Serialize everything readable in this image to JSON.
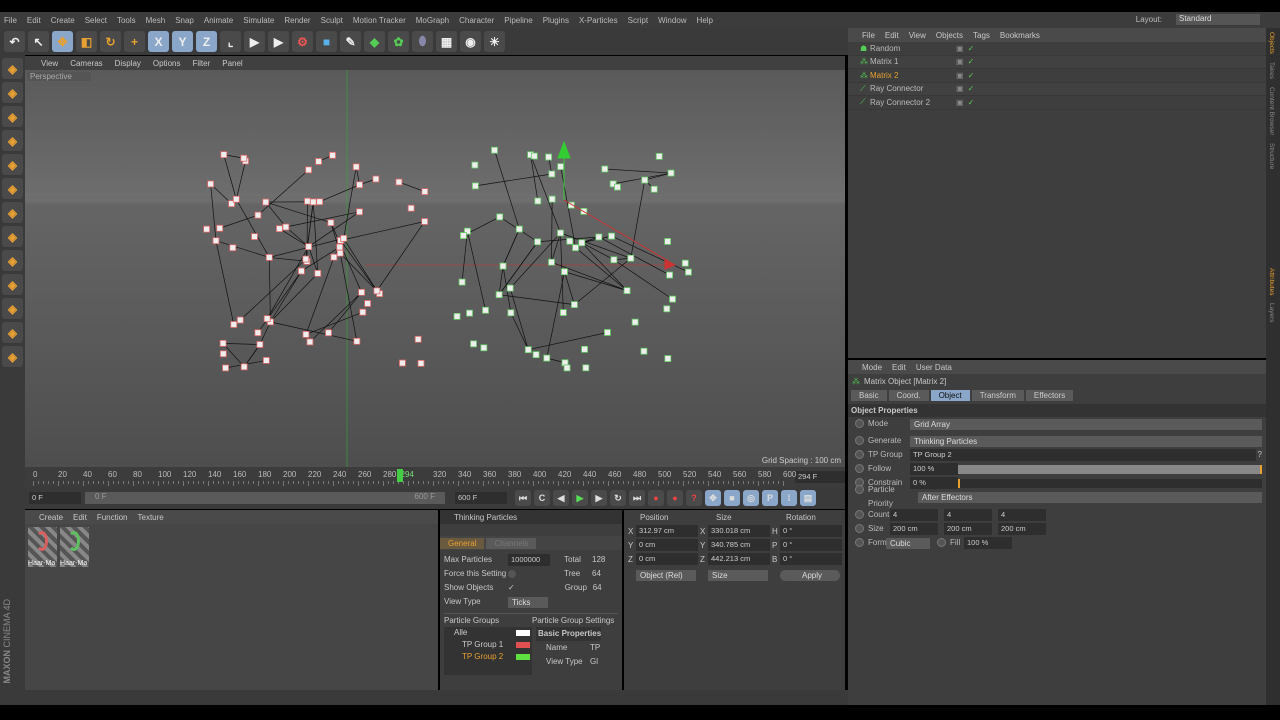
{
  "menu": [
    "File",
    "Edit",
    "Create",
    "Select",
    "Tools",
    "Mesh",
    "Snap",
    "Animate",
    "Simulate",
    "Render",
    "Sculpt",
    "Motion Tracker",
    "MoGraph",
    "Character",
    "Pipeline",
    "Plugins",
    "X-Particles",
    "Script",
    "Window",
    "Help"
  ],
  "layout": {
    "label": "Layout:",
    "value": "Standard"
  },
  "toolbar_icons": [
    "undo-icon",
    "live-selection-icon",
    "move-icon",
    "scale-icon",
    "rotate-icon",
    "add-icon",
    "x-axis-icon",
    "y-axis-icon",
    "z-axis-icon",
    "coordinate-system-icon",
    "render-view-icon",
    "render-picture-viewer-icon",
    "render-settings-icon",
    "cube-icon",
    "pen-icon",
    "subdivision-icon",
    "array-icon",
    "deformer-icon",
    "floor-icon",
    "camera-icon",
    "light-icon"
  ],
  "viewport": {
    "menu": [
      "View",
      "Cameras",
      "Display",
      "Options",
      "Filter",
      "Panel"
    ],
    "label": "Perspective",
    "grid_spacing": "Grid Spacing : 100 cm"
  },
  "timeline": {
    "ticks": [
      "0",
      "20",
      "40",
      "60",
      "80",
      "100",
      "120",
      "140",
      "160",
      "180",
      "200",
      "220",
      "240",
      "260",
      "280",
      "294",
      "320",
      "340",
      "360",
      "380",
      "400",
      "420",
      "440",
      "460",
      "480",
      "500",
      "520",
      "540",
      "560",
      "580",
      "600"
    ],
    "current": "294 F",
    "start": "0 F",
    "range_start": "0 F",
    "range_end": "600 F",
    "end": "600 F",
    "current_frame": 294,
    "max_frame": 600
  },
  "materials": {
    "menu": [
      "Create",
      "Edit",
      "Function",
      "Texture"
    ],
    "items": [
      {
        "name": "Haar-Ma",
        "color": "#d86060"
      },
      {
        "name": "Haar-Ma",
        "color": "#60c060"
      }
    ]
  },
  "brand": {
    "line1": "MAXON",
    "line2": "CINEMA 4D"
  },
  "tp": {
    "title": "Thinking Particles",
    "tabs": [
      "General",
      "Channels"
    ],
    "max_particles_label": "Max Particles",
    "max_particles": "1000000",
    "total_label": "Total",
    "total": "128",
    "force_label": "Force this Setting",
    "tree_label": "Tree",
    "tree": "64",
    "show_label": "Show Objects",
    "group_label": "Group",
    "group": "64",
    "viewtype_label": "View Type",
    "viewtype": "Ticks",
    "groups_label": "Particle Groups",
    "settings_label": "Particle Group Settings",
    "groups": [
      {
        "name": "Alle",
        "color": "#ffffff"
      },
      {
        "name": "TP Group 1",
        "color": "#e05050"
      },
      {
        "name": "TP Group 2",
        "color": "#60e040"
      }
    ],
    "basic": "Basic Properties",
    "name_label": "Name",
    "name_val": "TP",
    "viewtype2_label": "View Type",
    "viewtype2_val": "Gl"
  },
  "coords": {
    "headers": [
      "Position",
      "Size",
      "Rotation"
    ],
    "rows": [
      [
        "X",
        "312.97 cm",
        "X",
        "330.018 cm",
        "H",
        "0 °"
      ],
      [
        "Y",
        "0 cm",
        "Y",
        "340.785 cm",
        "P",
        "0 °"
      ],
      [
        "Z",
        "0 cm",
        "Z",
        "442.213 cm",
        "B",
        "0 °"
      ]
    ],
    "mode": "Object (Rel)",
    "size_mode": "Size",
    "apply": "Apply"
  },
  "objects": {
    "menu": [
      "File",
      "Edit",
      "View",
      "Objects",
      "Tags",
      "Bookmarks"
    ],
    "items": [
      {
        "name": "Random",
        "active": false
      },
      {
        "name": "Matrix 1",
        "active": false
      },
      {
        "name": "Matrix 2",
        "active": true
      },
      {
        "name": "Ray Connector",
        "active": false
      },
      {
        "name": "Ray Connector 2",
        "active": false
      }
    ]
  },
  "attributes": {
    "menu": [
      "Mode",
      "Edit",
      "User Data"
    ],
    "title": "Matrix Object [Matrix 2]",
    "tabs": [
      "Basic",
      "Coord.",
      "Object",
      "Transform",
      "Effectors"
    ],
    "active_tab": "Object",
    "section": "Object Properties",
    "mode_label": "Mode",
    "mode": "Grid Array",
    "generate_label": "Generate",
    "generate": "Thinking Particles",
    "tpgroup_label": "TP Group",
    "tpgroup": "TP Group 2",
    "follow_label": "Follow",
    "follow": "100 %",
    "follow_value": 100,
    "constrain_label": "Constrain",
    "constrain": "0 %",
    "constrain_value": 0,
    "priority_label": "Particle Priority",
    "priority": "After Effectors",
    "count_label": "Count",
    "count": [
      "4",
      "4",
      "4"
    ],
    "size_label": "Size",
    "size": [
      "200 cm",
      "200 cm",
      "200 cm"
    ],
    "form_label": "Form",
    "form": "Cubic",
    "fill_label": "Fill",
    "fill": "100 %"
  },
  "side_tabs_top": [
    "Objects",
    "Takes",
    "Content Browser",
    "Structure"
  ],
  "side_tabs_bottom": [
    "Attributes",
    "Layers"
  ]
}
